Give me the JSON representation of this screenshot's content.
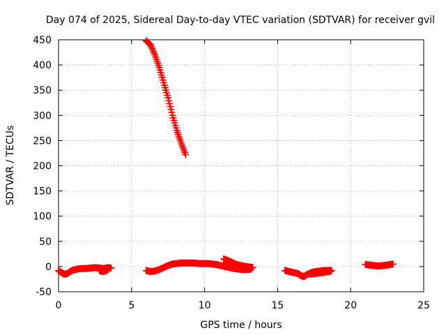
{
  "chart_data": {
    "type": "scatter",
    "title": "Day 074 of 2025, Sidereal Day-to-day VTEC variation (SDTVAR) for receiver gvil",
    "xlabel": "GPS time / hours",
    "ylabel": "SDTVAR / TECUs",
    "xlim": [
      0,
      25
    ],
    "ylim": [
      -50,
      450
    ],
    "x_ticks": [
      0,
      5,
      10,
      15,
      20,
      25
    ],
    "y_ticks": [
      -50,
      0,
      50,
      100,
      150,
      200,
      250,
      300,
      350,
      400,
      450
    ],
    "grid": true,
    "legend": "none",
    "marker": "plus",
    "color": "#ff0000",
    "series": [
      {
        "points": [
          [
            0.0,
            -8
          ],
          [
            0.2,
            -12
          ],
          [
            0.4,
            -15
          ],
          [
            0.6,
            -14
          ],
          [
            0.8,
            -10
          ],
          [
            1.0,
            -7
          ],
          [
            1.3,
            -5
          ],
          [
            1.6,
            -4
          ],
          [
            1.9,
            -4
          ],
          [
            2.2,
            -3
          ],
          [
            2.5,
            -2
          ],
          [
            2.8,
            -3
          ],
          [
            3.1,
            -4
          ],
          [
            3.4,
            -2
          ],
          [
            3.6,
            -3
          ]
        ]
      },
      {
        "points": [
          [
            2.8,
            -8
          ],
          [
            3.0,
            -10
          ],
          [
            3.2,
            -9
          ],
          [
            3.4,
            -6
          ]
        ]
      },
      {
        "points": [
          [
            6.0,
            448
          ],
          [
            6.3,
            440
          ],
          [
            6.6,
            420
          ],
          [
            6.9,
            395
          ],
          [
            7.2,
            365
          ],
          [
            7.5,
            335
          ],
          [
            7.8,
            300
          ],
          [
            8.1,
            270
          ],
          [
            8.4,
            245
          ],
          [
            8.7,
            222
          ]
        ]
      },
      {
        "points": [
          [
            6.0,
            -8
          ],
          [
            6.3,
            -10
          ],
          [
            6.6,
            -9
          ],
          [
            6.9,
            -6
          ],
          [
            7.2,
            -2
          ],
          [
            7.5,
            2
          ],
          [
            7.8,
            5
          ],
          [
            8.1,
            6
          ],
          [
            8.4,
            7
          ],
          [
            8.7,
            7
          ],
          [
            9.0,
            7
          ],
          [
            9.3,
            7
          ],
          [
            9.6,
            6
          ],
          [
            9.9,
            6
          ],
          [
            10.2,
            6
          ],
          [
            10.5,
            5
          ],
          [
            10.8,
            4
          ],
          [
            11.1,
            2
          ],
          [
            11.4,
            0
          ],
          [
            11.7,
            -2
          ],
          [
            12.0,
            -4
          ],
          [
            12.3,
            -5
          ],
          [
            12.6,
            -6
          ],
          [
            12.9,
            -6
          ],
          [
            13.2,
            -5
          ]
        ]
      },
      {
        "points": [
          [
            11.3,
            15
          ],
          [
            11.6,
            12
          ],
          [
            11.9,
            8
          ],
          [
            12.2,
            4
          ],
          [
            12.5,
            2
          ],
          [
            12.8,
            0
          ],
          [
            13.1,
            -1
          ],
          [
            13.3,
            -2
          ]
        ]
      },
      {
        "points": [
          [
            15.5,
            -8
          ],
          [
            15.8,
            -10
          ],
          [
            16.1,
            -12
          ],
          [
            16.4,
            -14
          ],
          [
            16.6,
            -18
          ],
          [
            16.8,
            -20
          ],
          [
            17.0,
            -16
          ],
          [
            17.3,
            -12
          ],
          [
            17.6,
            -10
          ],
          [
            17.9,
            -9
          ],
          [
            18.2,
            -8
          ],
          [
            18.5,
            -8
          ],
          [
            18.7,
            -8
          ]
        ]
      },
      {
        "points": [
          [
            17.2,
            -15
          ],
          [
            17.5,
            -14
          ],
          [
            17.8,
            -13
          ],
          [
            18.1,
            -12
          ],
          [
            18.4,
            -10
          ],
          [
            18.6,
            -10
          ]
        ]
      },
      {
        "points": [
          [
            21.0,
            4
          ],
          [
            21.3,
            3
          ],
          [
            21.6,
            2
          ],
          [
            21.9,
            1
          ],
          [
            22.2,
            2
          ],
          [
            22.5,
            3
          ],
          [
            22.7,
            4
          ],
          [
            22.9,
            5
          ]
        ]
      }
    ]
  }
}
